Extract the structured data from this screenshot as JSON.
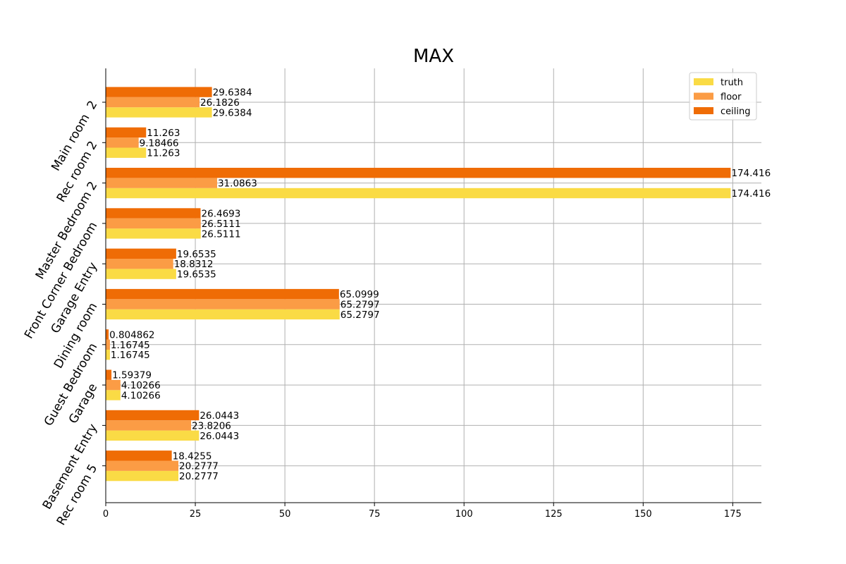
{
  "chart_data": {
    "type": "bar",
    "orientation": "horizontal",
    "title": "MAX",
    "categories": [
      "Main room  2",
      "Rec room 2",
      "Master Bedroom 2",
      "Front Corner Bedroom",
      "Garage Entry",
      "Dining room",
      "Guest Bedroom",
      "Garage",
      "Basement Entry",
      "Rec room 5"
    ],
    "series": [
      {
        "name": "truth",
        "color": "#fadb45",
        "values": [
          29.6384,
          11.263,
          174.416,
          26.5111,
          19.6535,
          65.2797,
          1.16745,
          4.10266,
          26.0443,
          20.2777
        ],
        "labels": [
          "29.6384",
          "11.263",
          "174.416",
          "26.5111",
          "19.6535",
          "65.2797",
          "1.16745",
          "4.10266",
          "26.0443",
          "20.2777"
        ]
      },
      {
        "name": "floor",
        "color": "#fb9c45",
        "values": [
          26.1826,
          9.18466,
          31.0863,
          26.5111,
          18.8312,
          65.2797,
          1.16745,
          4.10266,
          23.8206,
          20.2777
        ],
        "labels": [
          "26.1826",
          "9.18466",
          "31.0863",
          "26.5111",
          "18.8312",
          "65.2797",
          "1.16745",
          "4.10266",
          "23.8206",
          "20.2777"
        ]
      },
      {
        "name": "ceiling",
        "color": "#ef6c05",
        "values": [
          29.6384,
          11.263,
          174.416,
          26.4693,
          19.6535,
          65.0999,
          0.804862,
          1.59379,
          26.0443,
          18.4255
        ],
        "labels": [
          "29.6384",
          "11.263",
          "174.416",
          "26.4693",
          "19.6535",
          "65.0999",
          "0.804862",
          "1.59379",
          "26.0443",
          "18.4255"
        ]
      }
    ],
    "xticks": [
      0,
      25,
      50,
      75,
      100,
      125,
      150,
      175
    ],
    "xtick_labels": [
      "0",
      "25",
      "50",
      "75",
      "100",
      "125",
      "150",
      "175"
    ],
    "xlim": [
      0,
      183
    ],
    "grid": true,
    "legend_position": "top-right"
  }
}
